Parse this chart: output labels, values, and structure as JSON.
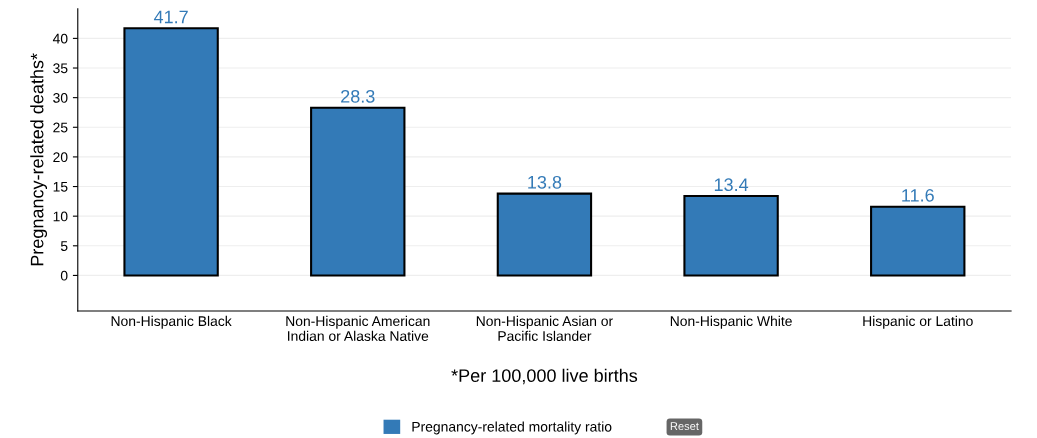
{
  "chart_data": {
    "type": "bar",
    "ylabel": "Pregnancy-related deaths*",
    "xlabel": "*Per 100,000 live births",
    "categories": [
      "Non-Hispanic Black",
      "Non-Hispanic American\nIndian or Alaska Native",
      "Non-Hispanic Asian or\nPacific Islander",
      "Non-Hispanic White",
      "Hispanic or Latino"
    ],
    "series": [
      {
        "name": "Pregnancy-related mortality ratio",
        "color": "#337ab7",
        "values": [
          41.7,
          28.3,
          13.8,
          13.4,
          11.6
        ]
      }
    ],
    "data_labels": true,
    "ylim": [
      -6,
      45
    ],
    "yticks": [
      0,
      5,
      10,
      15,
      20,
      25,
      30,
      35,
      40
    ],
    "grid": "y",
    "legend": "bottom",
    "annotations": [
      "Reset"
    ]
  }
}
